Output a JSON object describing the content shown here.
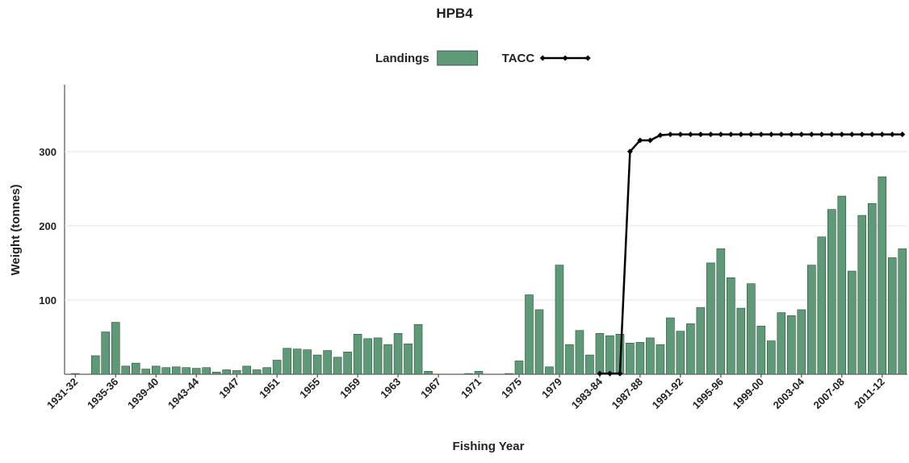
{
  "chart_data": {
    "type": "bar",
    "title": "HPB4",
    "x_label": "Fishing Year",
    "y_label": "Weight (tonnes)",
    "categories": [
      "1931-32",
      null,
      null,
      null,
      "1935-36",
      null,
      null,
      null,
      "1939-40",
      null,
      null,
      null,
      "1943-44",
      null,
      null,
      null,
      "1947",
      null,
      null,
      null,
      "1951",
      null,
      null,
      null,
      "1955",
      null,
      null,
      null,
      "1959",
      null,
      null,
      null,
      "1963",
      null,
      null,
      null,
      "1967",
      null,
      null,
      null,
      "1971",
      null,
      null,
      null,
      "1975",
      null,
      null,
      null,
      "1979",
      null,
      null,
      null,
      "1983-84",
      null,
      null,
      null,
      "1987-88",
      null,
      null,
      null,
      "1991-92",
      null,
      null,
      null,
      "1995-96",
      null,
      null,
      null,
      "1999-00",
      null,
      null,
      null,
      "2003-04",
      null,
      null,
      null,
      "2007-08",
      null,
      null,
      null,
      "2011-12",
      null,
      null
    ],
    "series": [
      {
        "name": "Landings",
        "type": "bar",
        "color": "#5f9a78",
        "values": [
          1,
          0,
          25,
          57,
          70,
          11,
          15,
          7,
          11,
          9,
          10,
          9,
          8,
          9,
          3,
          6,
          5,
          11,
          6,
          9,
          19,
          35,
          34,
          33,
          26,
          32,
          23,
          30,
          54,
          48,
          49,
          40,
          55,
          41,
          67,
          4,
          0,
          0,
          0,
          1,
          4,
          0,
          0,
          1,
          18,
          107,
          87,
          10,
          147,
          40,
          59,
          26,
          55,
          52,
          54,
          42,
          43,
          49,
          40,
          76,
          58,
          68,
          90,
          150,
          169,
          130,
          89,
          122,
          65,
          45,
          83,
          79,
          87,
          147,
          185,
          222,
          240,
          139,
          214,
          230,
          266,
          157,
          169
        ]
      },
      {
        "name": "TACC",
        "type": "line",
        "color": "#000000",
        "values": [
          null,
          null,
          null,
          null,
          null,
          null,
          null,
          null,
          null,
          null,
          null,
          null,
          null,
          null,
          null,
          null,
          null,
          null,
          null,
          null,
          null,
          null,
          null,
          null,
          null,
          null,
          null,
          null,
          null,
          null,
          null,
          null,
          null,
          null,
          null,
          null,
          null,
          null,
          null,
          null,
          null,
          null,
          null,
          null,
          null,
          null,
          null,
          null,
          null,
          null,
          null,
          null,
          1,
          1,
          1,
          300,
          315,
          315,
          322,
          323,
          323,
          323,
          323,
          323,
          323,
          323,
          323,
          323,
          323,
          323,
          323,
          323,
          323,
          323,
          323,
          323,
          323,
          323,
          323,
          323,
          323,
          323,
          323
        ]
      }
    ],
    "ylim": [
      0,
      390
    ],
    "yticks": [
      100,
      200,
      300
    ],
    "grid": true,
    "legend": "top"
  }
}
